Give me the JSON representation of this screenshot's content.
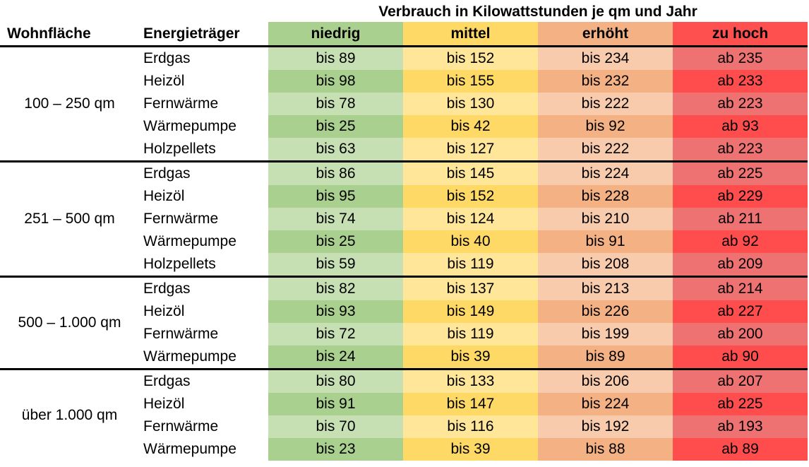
{
  "supertitle": "Verbrauch in Kilowattstunden je qm und Jahr",
  "headers": {
    "area": "Wohnfläche",
    "carrier": "Energieträger",
    "niedrig": "niedrig",
    "mittel": "mittel",
    "erhoeht": "erhöht",
    "zuhoch": "zu hoch"
  },
  "colors": {
    "niedrig": "#a9d08e",
    "mittel": "#ffd966",
    "erhoeht": "#f4b183",
    "zuhoch": "#ff5050"
  },
  "groups": [
    {
      "area": "100 – 250 qm",
      "rows": [
        {
          "carrier": "Erdgas",
          "niedrig": "bis 89",
          "mittel": "bis 152",
          "erhoeht": "bis 234",
          "zuhoch": "ab 235"
        },
        {
          "carrier": "Heizöl",
          "niedrig": "bis 98",
          "mittel": "bis 155",
          "erhoeht": "bis 232",
          "zuhoch": "ab 233"
        },
        {
          "carrier": "Fernwärme",
          "niedrig": "bis 78",
          "mittel": "bis 130",
          "erhoeht": "bis 222",
          "zuhoch": "ab 223"
        },
        {
          "carrier": "Wärmepumpe",
          "niedrig": "bis 25",
          "mittel": "bis 42",
          "erhoeht": "bis 92",
          "zuhoch": "ab 93"
        },
        {
          "carrier": "Holzpellets",
          "niedrig": "bis 63",
          "mittel": "bis 127",
          "erhoeht": "bis 222",
          "zuhoch": "ab 223"
        }
      ]
    },
    {
      "area": "251 – 500 qm",
      "rows": [
        {
          "carrier": "Erdgas",
          "niedrig": "bis 86",
          "mittel": "bis 145",
          "erhoeht": "bis 224",
          "zuhoch": "ab 225"
        },
        {
          "carrier": "Heizöl",
          "niedrig": "bis 95",
          "mittel": "bis 152",
          "erhoeht": "bis 228",
          "zuhoch": "ab 229"
        },
        {
          "carrier": "Fernwärme",
          "niedrig": "bis 74",
          "mittel": "bis 124",
          "erhoeht": "bis 210",
          "zuhoch": "ab 211"
        },
        {
          "carrier": "Wärmepumpe",
          "niedrig": "bis 25",
          "mittel": "bis 40",
          "erhoeht": "bis 91",
          "zuhoch": "ab 92"
        },
        {
          "carrier": "Holzpellets",
          "niedrig": "bis 59",
          "mittel": "bis 119",
          "erhoeht": "bis 208",
          "zuhoch": "ab 209"
        }
      ]
    },
    {
      "area": "500 – 1.000 qm",
      "rows": [
        {
          "carrier": "Erdgas",
          "niedrig": "bis 82",
          "mittel": "bis 137",
          "erhoeht": "bis 213",
          "zuhoch": "ab 214"
        },
        {
          "carrier": "Heizöl",
          "niedrig": "bis 93",
          "mittel": "bis 149",
          "erhoeht": "bis 226",
          "zuhoch": "ab 227"
        },
        {
          "carrier": "Fernwärme",
          "niedrig": "bis 72",
          "mittel": "bis 119",
          "erhoeht": "bis 199",
          "zuhoch": "ab 200"
        },
        {
          "carrier": "Wärmepumpe",
          "niedrig": "bis 24",
          "mittel": "bis 39",
          "erhoeht": "bis 89",
          "zuhoch": "ab 90"
        }
      ]
    },
    {
      "area": "über 1.000 qm",
      "rows": [
        {
          "carrier": "Erdgas",
          "niedrig": "bis 80",
          "mittel": "bis 133",
          "erhoeht": "bis 206",
          "zuhoch": "ab 207"
        },
        {
          "carrier": "Heizöl",
          "niedrig": "bis 91",
          "mittel": "bis 147",
          "erhoeht": "bis 224",
          "zuhoch": "ab 225"
        },
        {
          "carrier": "Fernwärme",
          "niedrig": "bis 70",
          "mittel": "bis 116",
          "erhoeht": "bis 192",
          "zuhoch": "ab 193"
        },
        {
          "carrier": "Wärmepumpe",
          "niedrig": "bis 23",
          "mittel": "bis 39",
          "erhoeht": "bis 88",
          "zuhoch": "ab 89"
        }
      ]
    }
  ]
}
